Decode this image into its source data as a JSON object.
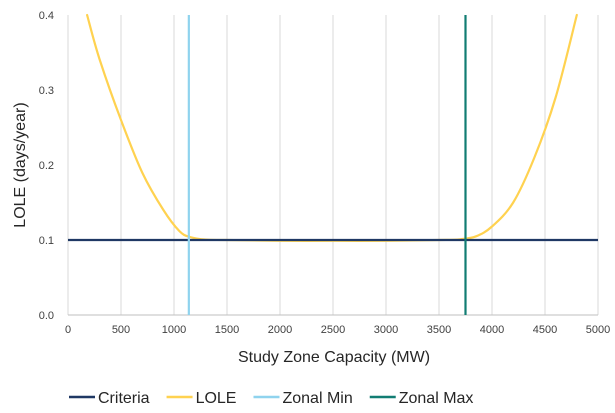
{
  "chart_data": {
    "type": "line",
    "title": "",
    "xlabel": "Study Zone Capacity (MW)",
    "ylabel": "LOLE (days/year)",
    "xlim": [
      0,
      5000
    ],
    "ylim": [
      0,
      0.4
    ],
    "xticks": [
      "0",
      "500",
      "1000",
      "1500",
      "2000",
      "2500",
      "3000",
      "3500",
      "4000",
      "4500",
      "5000"
    ],
    "yticks": [
      "0.0",
      "0.1",
      "0.2",
      "0.3",
      "0.4"
    ],
    "grid": "vertical",
    "legend_position": "bottom",
    "series": [
      {
        "name": "Criteria",
        "kind": "horizontal",
        "color": "#1f3864",
        "y": 0.1
      },
      {
        "name": "LOLE",
        "kind": "curve",
        "color": "#ffd250",
        "points": [
          [
            180,
            0.4
          ],
          [
            300,
            0.34
          ],
          [
            500,
            0.26
          ],
          [
            700,
            0.19
          ],
          [
            900,
            0.14
          ],
          [
            1050,
            0.112
          ],
          [
            1150,
            0.104
          ],
          [
            1300,
            0.1005
          ],
          [
            1500,
            0.1
          ],
          [
            2000,
            0.099
          ],
          [
            2500,
            0.099
          ],
          [
            3000,
            0.099
          ],
          [
            3500,
            0.1
          ],
          [
            3700,
            0.101
          ],
          [
            3850,
            0.105
          ],
          [
            4000,
            0.118
          ],
          [
            4200,
            0.15
          ],
          [
            4400,
            0.21
          ],
          [
            4600,
            0.29
          ],
          [
            4800,
            0.4
          ]
        ]
      },
      {
        "name": "Zonal Min",
        "kind": "vertical",
        "color": "#8fd3ee",
        "x": 1140
      },
      {
        "name": "Zonal Max",
        "kind": "vertical",
        "color": "#117d73",
        "x": 3750
      }
    ]
  }
}
